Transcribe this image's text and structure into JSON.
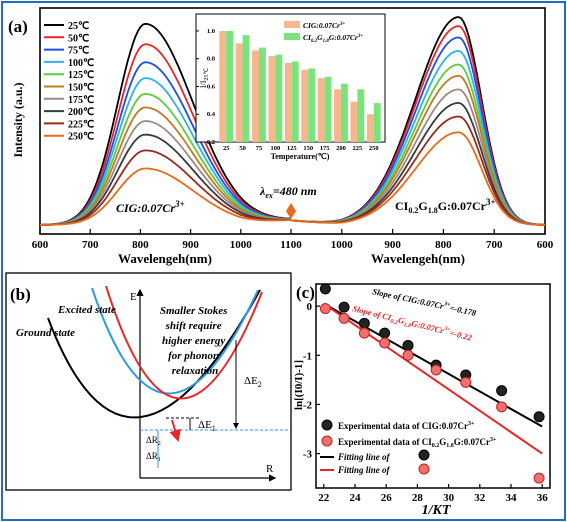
{
  "figure_frame_color": "#1e6fc0",
  "chart_data": [
    {
      "panel": "(a)",
      "type": "line",
      "description_labels": {
        "ylabel": "Intensity (a.u.)",
        "left_xlabel": "Wavelengeh(nm)",
        "right_xlabel": "Wavelengeh(nm)",
        "left_sample": "CIG:0.07Cr",
        "left_sample_sup": "3+",
        "right_sample": "CI",
        "right_sample_sub1": "0.2",
        "right_sample_mid": "G",
        "right_sample_sub2": "1.8",
        "right_sample_end": "G:0.07Cr",
        "right_sample_sup": "3+",
        "excitation": "λ",
        "excitation_sub": "ex",
        "excitation_val": "=480 nm"
      },
      "left_xticks": [
        "600",
        "700",
        "800",
        "900",
        "1000",
        "1100"
      ],
      "right_xticks": [
        "1100",
        "1000",
        "900",
        "800",
        "700",
        "600"
      ],
      "left_peak_nm": 810,
      "right_peak_nm": 770,
      "series": [
        {
          "name": "25℃",
          "color": "#000000",
          "left_peak": 0.93,
          "right_peak": 0.96
        },
        {
          "name": "50℃",
          "color": "#e8262a",
          "left_peak": 0.84,
          "right_peak": 0.92
        },
        {
          "name": "75℃",
          "color": "#1f4fe0",
          "left_peak": 0.76,
          "right_peak": 0.87
        },
        {
          "name": "100℃",
          "color": "#2db3e6",
          "left_peak": 0.69,
          "right_peak": 0.81
        },
        {
          "name": "125℃",
          "color": "#5bcc3c",
          "left_peak": 0.62,
          "right_peak": 0.75
        },
        {
          "name": "150℃",
          "color": "#c27a1e",
          "left_peak": 0.56,
          "right_peak": 0.7
        },
        {
          "name": "175℃",
          "color": "#9a8a8a",
          "left_peak": 0.5,
          "right_peak": 0.64
        },
        {
          "name": "200℃",
          "color": "#3a3a3a",
          "left_peak": 0.44,
          "right_peak": 0.58
        },
        {
          "name": "225℃",
          "color": "#9a2a20",
          "left_peak": 0.37,
          "right_peak": 0.52
        },
        {
          "name": "250℃",
          "color": "#e86a1a",
          "left_peak": 0.29,
          "right_peak": 0.45
        }
      ],
      "inset": {
        "type": "bar",
        "ylabel": "I/I",
        "ylabel_sub": "25℃",
        "xlabel": "Temperature(℃)",
        "categories": [
          "25",
          "50",
          "75",
          "100",
          "125",
          "150",
          "175",
          "200",
          "225",
          "250"
        ],
        "yticks": [
          "0.2",
          "0.4",
          "0.6",
          "0.8",
          "1.0"
        ],
        "ylim": [
          0.2,
          1.05
        ],
        "series": [
          {
            "name": "CIG:0.07Cr",
            "sup": "3+",
            "color": "#f6b78c",
            "values": [
              1.0,
              0.91,
              0.86,
              0.82,
              0.77,
              0.72,
              0.66,
              0.58,
              0.49,
              0.4
            ]
          },
          {
            "name": "CI",
            "sub": "0.2",
            "mid": "G",
            "sub2": "1.8",
            "end": "G:0.07Cr",
            "sup": "3+",
            "color": "#7be37b",
            "values": [
              1.0,
              0.97,
              0.88,
              0.83,
              0.78,
              0.73,
              0.67,
              0.62,
              0.58,
              0.48
            ]
          }
        ]
      }
    },
    {
      "panel": "(b)",
      "type": "diagram",
      "labels": {
        "excited": "Excited state",
        "ground": "Ground state",
        "E": "E",
        "R": "R",
        "note_lines": [
          "Smaller Stokes",
          "shift require",
          "higher energy",
          "for phonon",
          "relaxation"
        ],
        "dE1": "ΔE",
        "dE1_sub": "1",
        "dE2": "ΔE",
        "dE2_sub": "2",
        "dR2": "ΔR",
        "dR2_sub": "2",
        "dR1": "ΔR",
        "dR1_sub": "1"
      }
    },
    {
      "panel": "(c)",
      "type": "scatter",
      "xlabel": "1/KT",
      "ylabel": "ln[(I0/I)-1]",
      "xlim": [
        21.5,
        36.5
      ],
      "ylim": [
        -3.7,
        0.45
      ],
      "xticks": [
        22,
        24,
        26,
        28,
        30,
        32,
        34,
        36
      ],
      "yticks": [
        0,
        -1,
        -2,
        -3
      ],
      "slope1_text": "Slope of CIG:0.07Cr",
      "slope1_sup": "3+",
      "slope1_val": "=-0.178",
      "slope2_text": "Slope of CI",
      "slope2_sub1": "0.2",
      "slope2_mid": "G",
      "slope2_sub2": "1.8",
      "slope2_end": "G:0.07Cr",
      "slope2_sup": "3+",
      "slope2_val": "=-0.22",
      "legend": {
        "exp1": "Experimental data of CIG:0.07Cr",
        "exp1_sup": "3+",
        "exp2": "Experimental data of CI",
        "exp2_sub1": "0.2",
        "exp2_mid": "G",
        "exp2_sub2": "1.8",
        "exp2_end": "G:0.07Cr",
        "exp2_sup": "3+",
        "fit1": "Fitting line of",
        "fit2": "Fitting line of"
      },
      "series": [
        {
          "name": "CIG",
          "color": "#000000",
          "x": [
            22.1,
            23.3,
            24.6,
            25.9,
            27.4,
            29.2,
            31.1,
            33.4,
            35.8
          ],
          "y": [
            0.35,
            -0.02,
            -0.35,
            -0.55,
            -0.8,
            -1.2,
            -1.4,
            -1.72,
            -2.25
          ],
          "fit": {
            "x": [
              22,
              36
            ],
            "y": [
              0.05,
              -2.45
            ]
          }
        },
        {
          "name": "CIGG",
          "color": "#e8262a",
          "x": [
            22.1,
            23.3,
            24.6,
            25.9,
            27.4,
            29.2,
            31.1,
            33.4,
            35.8
          ],
          "y": [
            -0.05,
            -0.25,
            -0.55,
            -0.75,
            -1.0,
            -1.3,
            -1.55,
            -2.05,
            -3.5
          ],
          "fit": {
            "x": [
              22,
              36
            ],
            "y": [
              0.05,
              -3.0
            ]
          }
        }
      ]
    }
  ]
}
